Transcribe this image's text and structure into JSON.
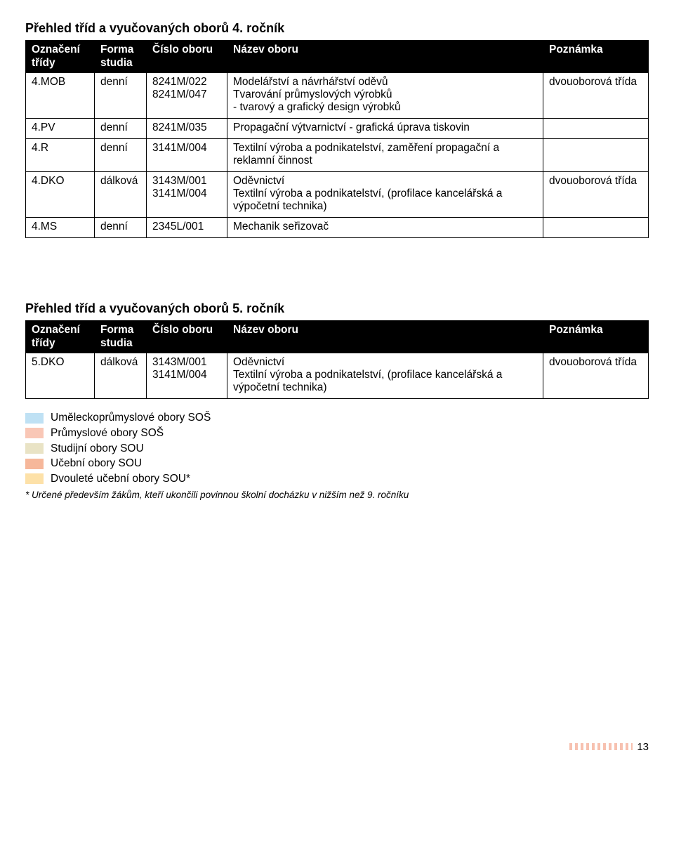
{
  "table4": {
    "title": "Přehled tříd a vyučovaných oborů 4. ročník",
    "headers": {
      "ozn": "Označení třídy",
      "forma": "Forma studia",
      "cislo": "Číslo oboru",
      "nazev": "Název oboru",
      "pozn": "Poznámka"
    },
    "rows": [
      {
        "ozn": "4.MOB",
        "forma": "denní",
        "cislo": "8241M/022\n8241M/047",
        "nazev": "Modelářství a návrhářství oděvů\nTvarování průmyslových výrobků\n- tvarový a grafický design výrobků",
        "pozn": "dvouoborová třída"
      },
      {
        "ozn": "4.PV",
        "forma": "denní",
        "cislo": "8241M/035",
        "nazev": "Propagační výtvarnictví - grafická úprava tiskovin",
        "pozn": ""
      },
      {
        "ozn": "4.R",
        "forma": "denní",
        "cislo": "3141M/004",
        "nazev": "Textilní výroba a podnikatelství, zaměření propagační a reklamní činnost",
        "pozn": ""
      },
      {
        "ozn": "4.DKO",
        "forma": "dálko­vá",
        "cislo": "3143M/001\n3141M/004",
        "nazev": "Oděvnictví\nTextilní výroba a podnikatelství, (profilace kancelářská a výpočetní technika)",
        "pozn": "dvouoborová třída"
      },
      {
        "ozn": "4.MS",
        "forma": "denní",
        "cislo": "2345L/001",
        "nazev": "Mechanik seřizovač",
        "pozn": ""
      }
    ]
  },
  "table5": {
    "title": "Přehled tříd a vyučovaných oborů 5. ročník",
    "headers": {
      "ozn": "Označení třídy",
      "forma": "Forma studia",
      "cislo": "Číslo oboru",
      "nazev": "Název oboru",
      "pozn": "Poznámka"
    },
    "rows": [
      {
        "ozn": "5.DKO",
        "forma": "dálko­vá",
        "cislo": "3143M/001\n3141M/004",
        "nazev": "Oděvnictví\nTextilní výroba a podnikatelství, (profilace kancelářská a výpočetní technika)",
        "pozn": "dvouoborová třída"
      }
    ]
  },
  "legend": {
    "items": [
      {
        "color": "#bfe1f4",
        "label": "Uměleckoprůmyslové obory SOŠ"
      },
      {
        "color": "#f9c7b6",
        "label": "Průmyslové obory SOŠ"
      },
      {
        "color": "#e9e3c5",
        "label": "Studijní obory SOU"
      },
      {
        "color": "#f6b79a",
        "label": "Učební obory SOU"
      },
      {
        "color": "#fde1a8",
        "label": "Dvouleté učební obory SOU*"
      }
    ],
    "footnote": "* Určené především žákům, kteří ukončili povinnou školní docházku v nižším než 9. ročníku"
  },
  "page": {
    "chevrons": "<<<<<<<<<<<",
    "number": "13"
  }
}
